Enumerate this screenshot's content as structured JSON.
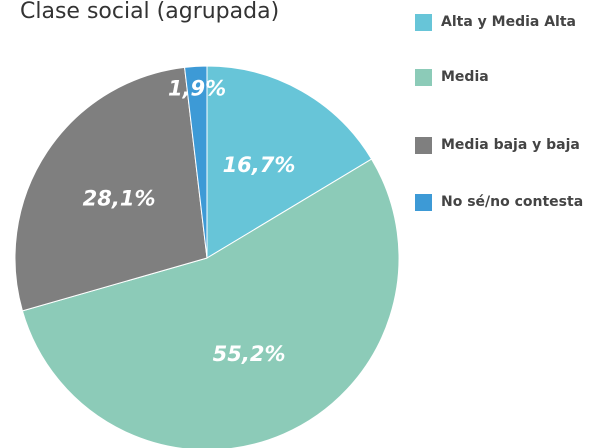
{
  "chart_data": {
    "type": "pie",
    "title": "Clase social (agrupada)",
    "categories": [
      "Alta y Media Alta",
      "Media",
      "Media baja y baja",
      "No sé/no contesta"
    ],
    "values": [
      16.7,
      55.2,
      28.1,
      1.9
    ],
    "value_labels": [
      "16,7%",
      "55,2%",
      "28,1%",
      "1,9%"
    ],
    "colors": [
      "#67c5d8",
      "#8ccbb8",
      "#7f7f7f",
      "#3d9ad6"
    ],
    "legend": "right"
  }
}
